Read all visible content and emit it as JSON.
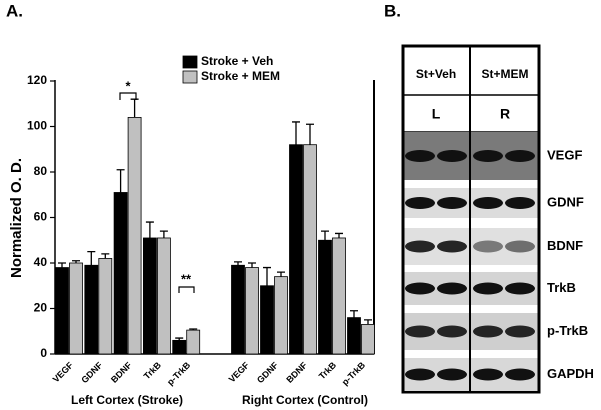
{
  "chart_data": {
    "type": "bar",
    "panel_label": "A.",
    "y_label": "Normalized O. D.",
    "categories": [
      "VEGF",
      "GDNF",
      "BDNF",
      "TrkB",
      "p-TrkB",
      "VEGF",
      "GDNF",
      "BDNF",
      "TrkB",
      "p-TrkB"
    ],
    "groups": [
      "Left Cortex (Stroke)",
      "Right Cortex (Control)"
    ],
    "series": [
      {
        "name": "Stroke + Veh",
        "color": "#000000",
        "values": [
          38,
          39,
          71,
          51,
          6,
          39,
          30,
          92,
          50,
          16
        ],
        "errors": [
          2,
          6,
          10,
          7,
          1,
          1.5,
          8,
          10,
          4,
          3
        ]
      },
      {
        "name": "Stroke + MEM",
        "color": "#c0c0c0",
        "values": [
          40,
          42,
          104,
          51,
          10.5,
          38,
          34,
          92,
          51,
          13
        ],
        "errors": [
          1,
          2,
          8,
          3,
          0.5,
          2,
          2,
          9,
          2,
          2
        ]
      }
    ],
    "annotations": [
      "*",
      "**"
    ],
    "ylim": [
      0,
      120
    ],
    "yticks": [
      0,
      20,
      40,
      60,
      80,
      100,
      120
    ],
    "legend": "top"
  },
  "blot": {
    "panel_label": "B.",
    "columns": [
      "St+Veh",
      "St+MEM"
    ],
    "sides": [
      "L",
      "R"
    ],
    "rows": [
      "VEGF",
      "GDNF",
      "BDNF",
      "TrkB",
      "p-TrkB",
      "GAPDH"
    ]
  }
}
